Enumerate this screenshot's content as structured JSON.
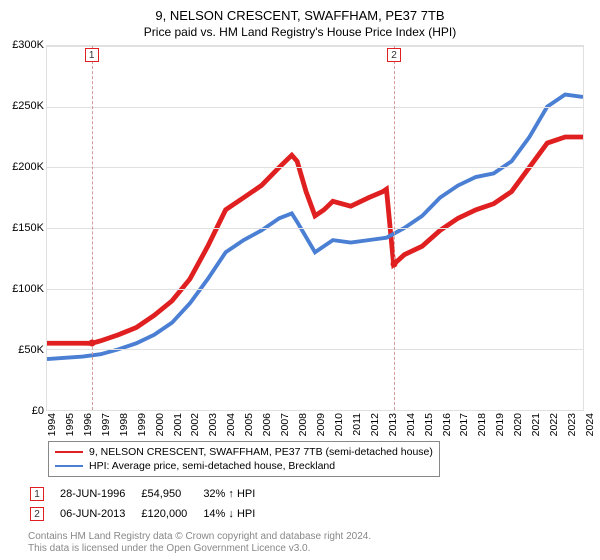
{
  "chart": {
    "title": "9, NELSON CRESCENT, SWAFFHAM, PE37 7TB",
    "subtitle": "Price paid vs. HM Land Registry's House Price Index (HPI)",
    "type": "line",
    "background_color": "#ffffff",
    "grid_color": "#e0e0e0",
    "ylim": [
      0,
      300000
    ],
    "ytick_step": 50000,
    "yticks": [
      "£0",
      "£50K",
      "£100K",
      "£150K",
      "£200K",
      "£250K",
      "£300K"
    ],
    "xlim": [
      1994,
      2024
    ],
    "xticks": [
      1994,
      1995,
      1996,
      1997,
      1998,
      1999,
      2000,
      2001,
      2002,
      2003,
      2004,
      2005,
      2006,
      2007,
      2008,
      2009,
      2010,
      2011,
      2012,
      2013,
      2014,
      2015,
      2016,
      2017,
      2018,
      2019,
      2020,
      2021,
      2022,
      2023,
      2024
    ],
    "series": [
      {
        "name": "prop",
        "label": "9, NELSON CRESCENT, SWAFFHAM, PE37 7TB (semi-detached house)",
        "color": "#e02020",
        "line_width": 1.6,
        "data": [
          [
            1994,
            55000
          ],
          [
            1995,
            55000
          ],
          [
            1996,
            55000
          ],
          [
            1996.5,
            54950
          ],
          [
            1997,
            57000
          ],
          [
            1998,
            62000
          ],
          [
            1999,
            68000
          ],
          [
            2000,
            78000
          ],
          [
            2001,
            90000
          ],
          [
            2002,
            108000
          ],
          [
            2003,
            135000
          ],
          [
            2004,
            165000
          ],
          [
            2005,
            175000
          ],
          [
            2006,
            185000
          ],
          [
            2007,
            200000
          ],
          [
            2007.7,
            210000
          ],
          [
            2008,
            205000
          ],
          [
            2008.5,
            180000
          ],
          [
            2009,
            160000
          ],
          [
            2009.5,
            165000
          ],
          [
            2010,
            172000
          ],
          [
            2011,
            168000
          ],
          [
            2012,
            175000
          ],
          [
            2012.8,
            180000
          ],
          [
            2013,
            182000
          ],
          [
            2013.4,
            120000
          ],
          [
            2014,
            128000
          ],
          [
            2015,
            135000
          ],
          [
            2016,
            148000
          ],
          [
            2017,
            158000
          ],
          [
            2018,
            165000
          ],
          [
            2019,
            170000
          ],
          [
            2020,
            180000
          ],
          [
            2021,
            200000
          ],
          [
            2022,
            220000
          ],
          [
            2023,
            225000
          ],
          [
            2024,
            225000
          ]
        ]
      },
      {
        "name": "hpi",
        "label": "HPI: Average price, semi-detached house, Breckland",
        "color": "#4a7fd4",
        "line_width": 1.3,
        "data": [
          [
            1994,
            42000
          ],
          [
            1995,
            43000
          ],
          [
            1996,
            44000
          ],
          [
            1997,
            46000
          ],
          [
            1998,
            50000
          ],
          [
            1999,
            55000
          ],
          [
            2000,
            62000
          ],
          [
            2001,
            72000
          ],
          [
            2002,
            88000
          ],
          [
            2003,
            108000
          ],
          [
            2004,
            130000
          ],
          [
            2005,
            140000
          ],
          [
            2006,
            148000
          ],
          [
            2007,
            158000
          ],
          [
            2007.7,
            162000
          ],
          [
            2008,
            155000
          ],
          [
            2009,
            130000
          ],
          [
            2010,
            140000
          ],
          [
            2011,
            138000
          ],
          [
            2012,
            140000
          ],
          [
            2013,
            142000
          ],
          [
            2014,
            150000
          ],
          [
            2015,
            160000
          ],
          [
            2016,
            175000
          ],
          [
            2017,
            185000
          ],
          [
            2018,
            192000
          ],
          [
            2019,
            195000
          ],
          [
            2020,
            205000
          ],
          [
            2021,
            225000
          ],
          [
            2022,
            250000
          ],
          [
            2023,
            260000
          ],
          [
            2024,
            258000
          ]
        ]
      }
    ],
    "events": [
      {
        "n": "1",
        "x": 1996.5,
        "date": "28-JUN-1996",
        "price": "£54,950",
        "delta": "32% ↑ HPI",
        "marker_y": 54950
      },
      {
        "n": "2",
        "x": 2013.42,
        "date": "06-JUN-2013",
        "price": "£120,000",
        "delta": "14% ↓ HPI",
        "marker_y": 120000
      }
    ],
    "event_line_color": "#d49a9a",
    "event_box_border": "#e02020"
  },
  "copyright": {
    "line1": "Contains HM Land Registry data © Crown copyright and database right 2024.",
    "line2": "This data is licensed under the Open Government Licence v3.0."
  }
}
